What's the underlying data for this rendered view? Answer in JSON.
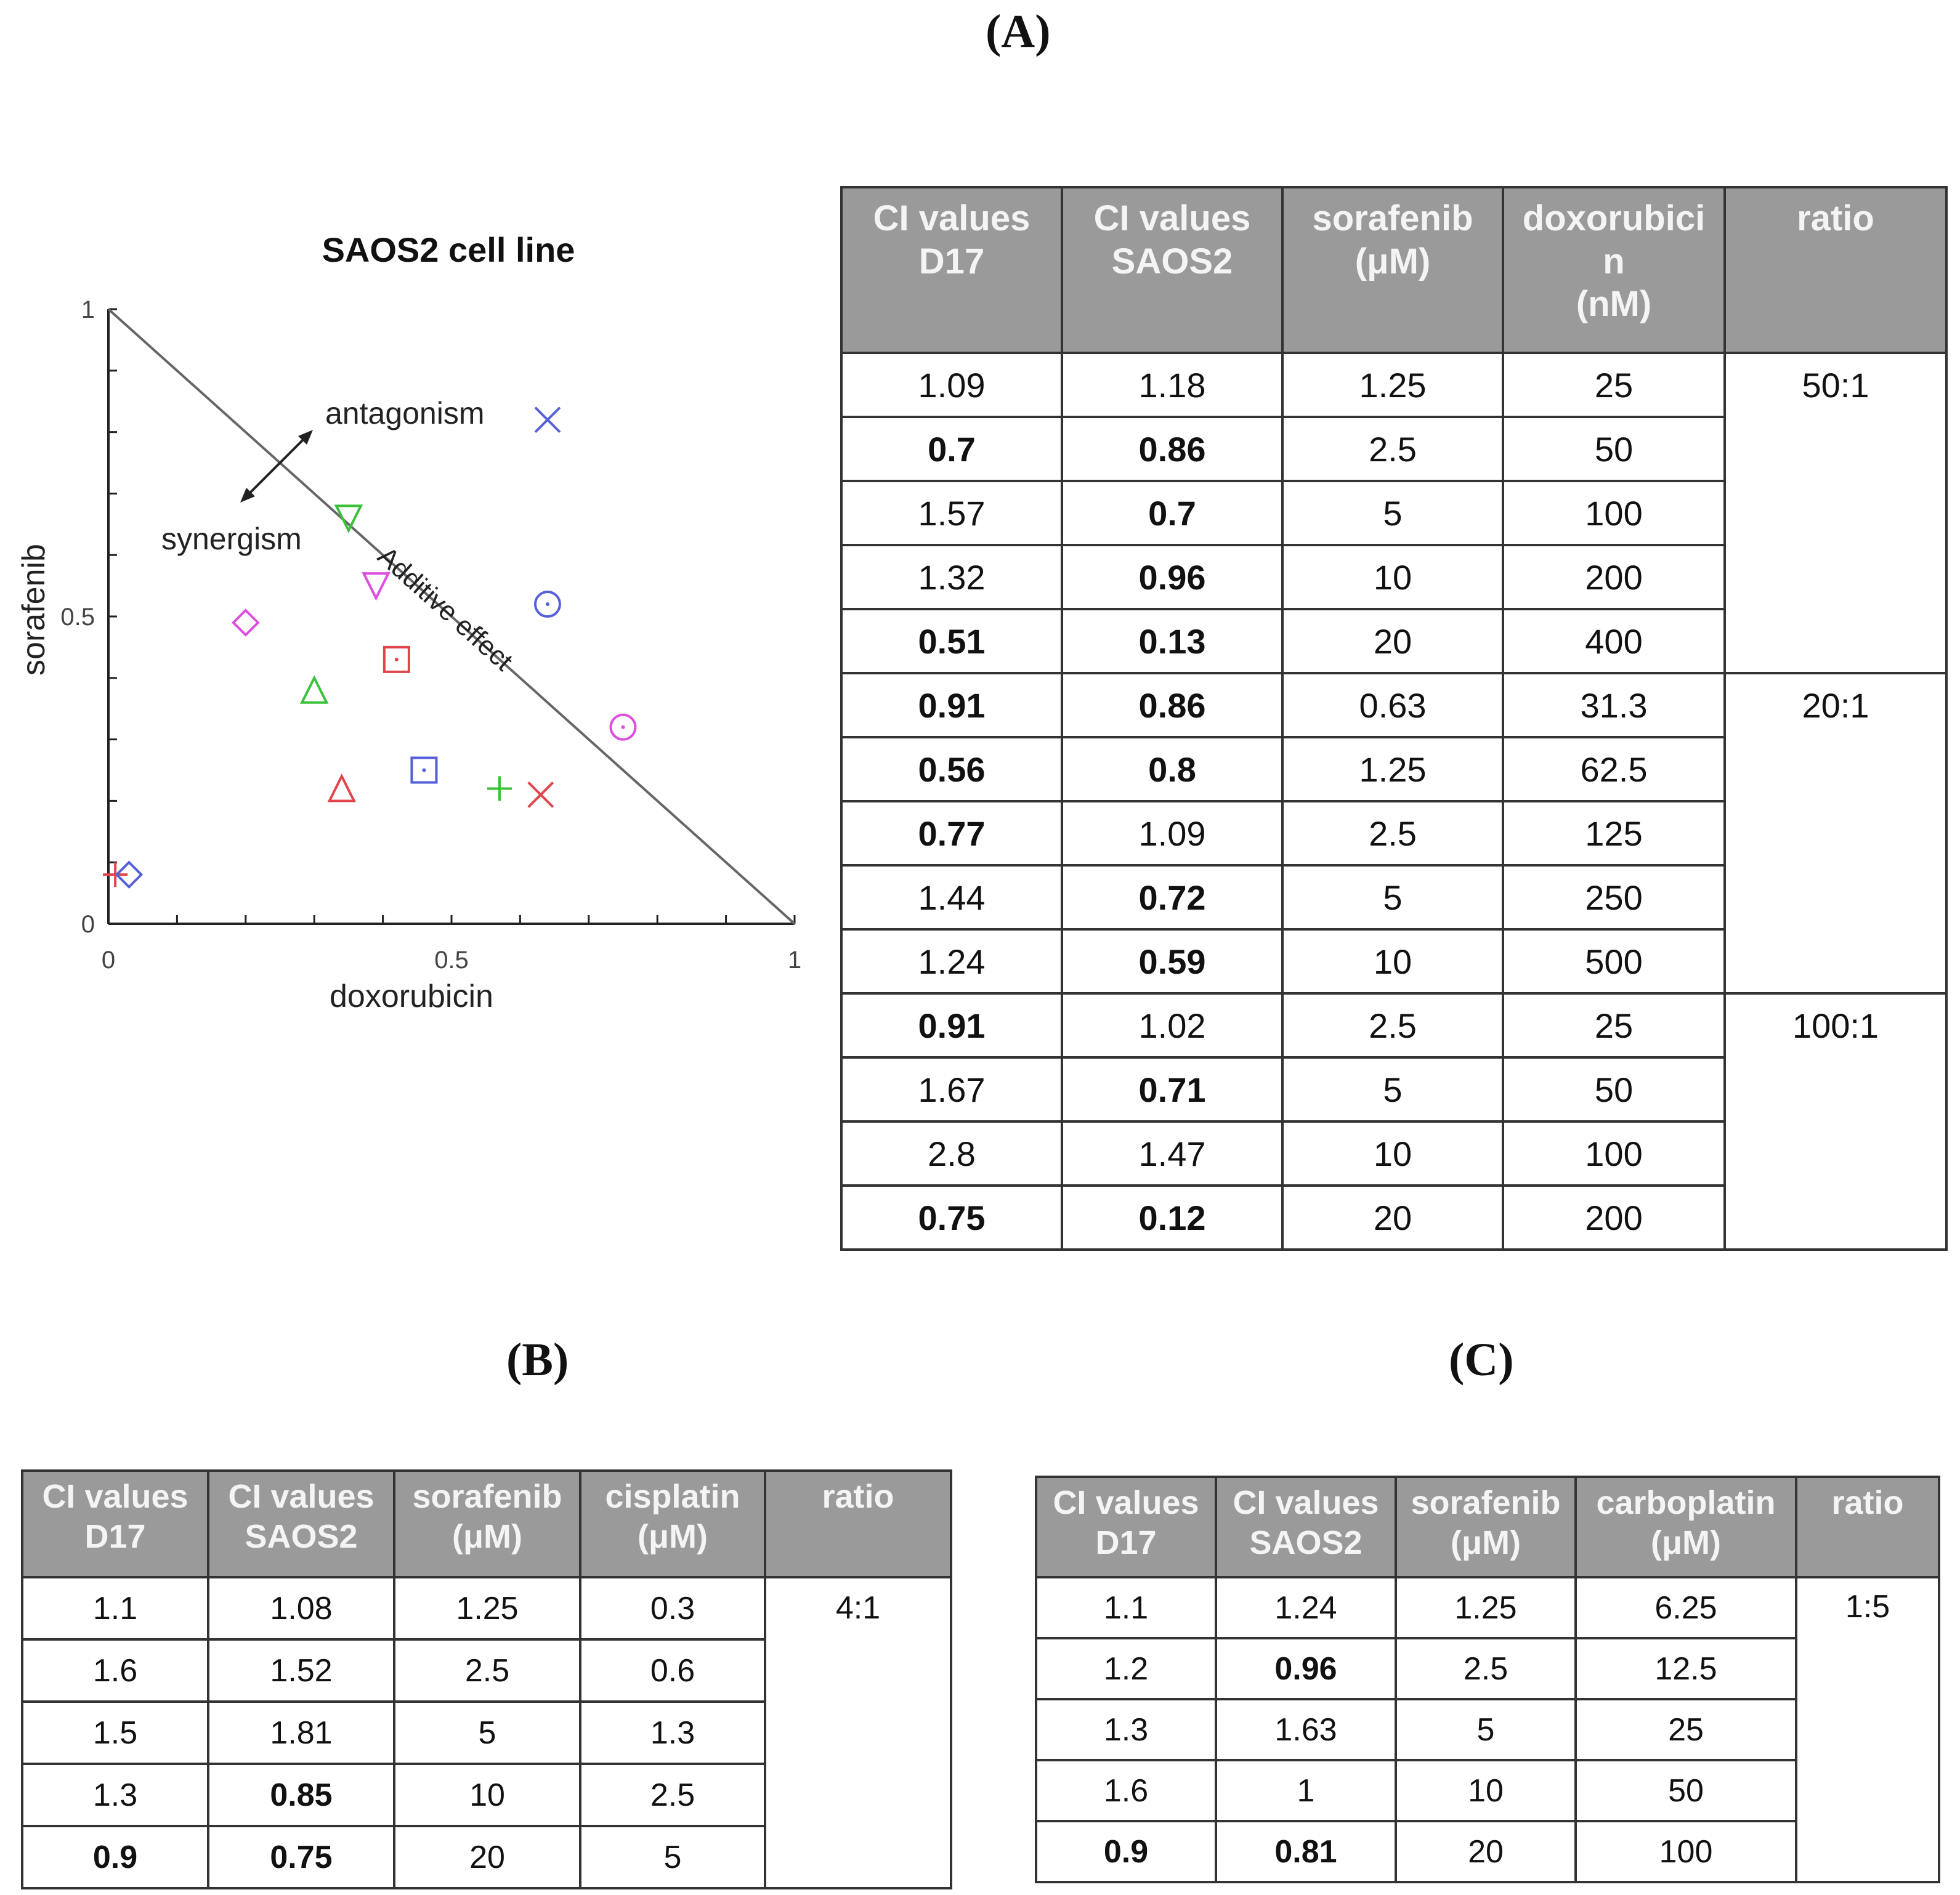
{
  "panels": {
    "a": "(A)",
    "b": "(B)",
    "c": "(C)"
  },
  "chart_data": {
    "type": "scatter",
    "title": "SAOS2 cell line",
    "xlabel": "doxorubicin",
    "ylabel": "sorafenib",
    "xlim": [
      0,
      1
    ],
    "ylim": [
      0,
      1
    ],
    "xticks": [
      "0",
      "0.5",
      "1"
    ],
    "yticks": [
      "0",
      "0.5",
      "1"
    ],
    "annotations": {
      "antagonism": "antagonism",
      "synergism": "synergism",
      "additive": "Additive effect"
    },
    "colors": {
      "red": "#e0454b",
      "green": "#39c23a",
      "blue": "#5560d8",
      "magenta": "#de4ede",
      "line": "#666666"
    },
    "points": [
      {
        "x": 0.64,
        "y": 0.82,
        "marker": "x",
        "color": "blue"
      },
      {
        "x": 0.35,
        "y": 0.66,
        "marker": "triangle-down",
        "color": "green"
      },
      {
        "x": 0.39,
        "y": 0.55,
        "marker": "triangle-down",
        "color": "magenta"
      },
      {
        "x": 0.64,
        "y": 0.52,
        "marker": "circle",
        "color": "blue"
      },
      {
        "x": 0.2,
        "y": 0.49,
        "marker": "diamond",
        "color": "magenta"
      },
      {
        "x": 0.42,
        "y": 0.43,
        "marker": "square",
        "color": "red"
      },
      {
        "x": 0.3,
        "y": 0.38,
        "marker": "triangle-up",
        "color": "green"
      },
      {
        "x": 0.75,
        "y": 0.32,
        "marker": "circle",
        "color": "magenta"
      },
      {
        "x": 0.46,
        "y": 0.25,
        "marker": "square",
        "color": "blue"
      },
      {
        "x": 0.34,
        "y": 0.22,
        "marker": "triangle-up",
        "color": "red"
      },
      {
        "x": 0.57,
        "y": 0.22,
        "marker": "plus",
        "color": "green"
      },
      {
        "x": 0.63,
        "y": 0.21,
        "marker": "x",
        "color": "red"
      },
      {
        "x": 0.01,
        "y": 0.08,
        "marker": "plus",
        "color": "red"
      },
      {
        "x": 0.03,
        "y": 0.08,
        "marker": "diamond",
        "color": "blue"
      }
    ]
  },
  "table_a": {
    "headers": [
      [
        "CI values",
        "D17"
      ],
      [
        "CI values",
        "SAOS2"
      ],
      [
        "sorafenib",
        "(μM)"
      ],
      [
        "doxorubici",
        "n",
        "(nM)"
      ],
      [
        "ratio"
      ]
    ],
    "groups": [
      {
        "ratio": "50:1",
        "rows": [
          [
            {
              "v": "1.09",
              "b": false
            },
            {
              "v": "1.18",
              "b": false
            },
            {
              "v": "1.25"
            },
            {
              "v": "25"
            }
          ],
          [
            {
              "v": "0.7",
              "b": true
            },
            {
              "v": "0.86",
              "b": true
            },
            {
              "v": "2.5"
            },
            {
              "v": "50"
            }
          ],
          [
            {
              "v": "1.57",
              "b": false
            },
            {
              "v": "0.7",
              "b": true
            },
            {
              "v": "5"
            },
            {
              "v": "100"
            }
          ],
          [
            {
              "v": "1.32",
              "b": false
            },
            {
              "v": "0.96",
              "b": true
            },
            {
              "v": "10"
            },
            {
              "v": "200"
            }
          ],
          [
            {
              "v": "0.51",
              "b": true
            },
            {
              "v": "0.13",
              "b": true
            },
            {
              "v": "20"
            },
            {
              "v": "400"
            }
          ]
        ]
      },
      {
        "ratio": "20:1",
        "rows": [
          [
            {
              "v": "0.91",
              "b": true
            },
            {
              "v": "0.86",
              "b": true
            },
            {
              "v": "0.63"
            },
            {
              "v": "31.3"
            }
          ],
          [
            {
              "v": "0.56",
              "b": true
            },
            {
              "v": "0.8",
              "b": true
            },
            {
              "v": "1.25"
            },
            {
              "v": "62.5"
            }
          ],
          [
            {
              "v": "0.77",
              "b": true
            },
            {
              "v": "1.09",
              "b": false
            },
            {
              "v": "2.5"
            },
            {
              "v": "125"
            }
          ],
          [
            {
              "v": "1.44",
              "b": false
            },
            {
              "v": "0.72",
              "b": true
            },
            {
              "v": "5"
            },
            {
              "v": "250"
            }
          ],
          [
            {
              "v": "1.24",
              "b": false
            },
            {
              "v": "0.59",
              "b": true
            },
            {
              "v": "10"
            },
            {
              "v": "500"
            }
          ]
        ]
      },
      {
        "ratio": "100:1",
        "rows": [
          [
            {
              "v": "0.91",
              "b": true
            },
            {
              "v": "1.02",
              "b": false
            },
            {
              "v": "2.5"
            },
            {
              "v": "25"
            }
          ],
          [
            {
              "v": "1.67",
              "b": false
            },
            {
              "v": "0.71",
              "b": true
            },
            {
              "v": "5"
            },
            {
              "v": "50"
            }
          ],
          [
            {
              "v": "2.8",
              "b": false
            },
            {
              "v": "1.47",
              "b": false
            },
            {
              "v": "10"
            },
            {
              "v": "100"
            }
          ],
          [
            {
              "v": "0.75",
              "b": true
            },
            {
              "v": "0.12",
              "b": true
            },
            {
              "v": "20"
            },
            {
              "v": "200"
            }
          ]
        ]
      }
    ]
  },
  "table_b": {
    "headers": [
      [
        "CI values",
        "D17"
      ],
      [
        "CI values",
        "SAOS2"
      ],
      [
        "sorafenib",
        "(μM)"
      ],
      [
        "cisplatin",
        "(μM)"
      ],
      [
        "ratio"
      ]
    ],
    "groups": [
      {
        "ratio": "4:1",
        "rows": [
          [
            {
              "v": "1.1",
              "b": false
            },
            {
              "v": "1.08",
              "b": false
            },
            {
              "v": "1.25"
            },
            {
              "v": "0.3"
            }
          ],
          [
            {
              "v": "1.6",
              "b": false
            },
            {
              "v": "1.52",
              "b": false
            },
            {
              "v": "2.5"
            },
            {
              "v": "0.6"
            }
          ],
          [
            {
              "v": "1.5",
              "b": false
            },
            {
              "v": "1.81",
              "b": false
            },
            {
              "v": "5"
            },
            {
              "v": "1.3"
            }
          ],
          [
            {
              "v": "1.3",
              "b": false
            },
            {
              "v": "0.85",
              "b": true
            },
            {
              "v": "10"
            },
            {
              "v": "2.5"
            }
          ],
          [
            {
              "v": "0.9",
              "b": true
            },
            {
              "v": "0.75",
              "b": true
            },
            {
              "v": "20"
            },
            {
              "v": "5"
            }
          ]
        ]
      }
    ]
  },
  "table_c": {
    "headers": [
      [
        "CI values",
        "D17"
      ],
      [
        "CI values",
        "SAOS2"
      ],
      [
        "sorafenib",
        "(μM)"
      ],
      [
        "carboplatin",
        "(μM)"
      ],
      [
        "ratio"
      ]
    ],
    "groups": [
      {
        "ratio": "1:5",
        "rows": [
          [
            {
              "v": "1.1",
              "b": false
            },
            {
              "v": "1.24",
              "b": false
            },
            {
              "v": "1.25"
            },
            {
              "v": "6.25"
            }
          ],
          [
            {
              "v": "1.2",
              "b": false
            },
            {
              "v": "0.96",
              "b": true
            },
            {
              "v": "2.5"
            },
            {
              "v": "12.5"
            }
          ],
          [
            {
              "v": "1.3",
              "b": false
            },
            {
              "v": "1.63",
              "b": false
            },
            {
              "v": "5"
            },
            {
              "v": "25"
            }
          ],
          [
            {
              "v": "1.6",
              "b": false
            },
            {
              "v": "1",
              "b": false
            },
            {
              "v": "10"
            },
            {
              "v": "50"
            }
          ],
          [
            {
              "v": "0.9",
              "b": true
            },
            {
              "v": "0.81",
              "b": true
            },
            {
              "v": "20"
            },
            {
              "v": "100"
            }
          ]
        ]
      }
    ]
  }
}
